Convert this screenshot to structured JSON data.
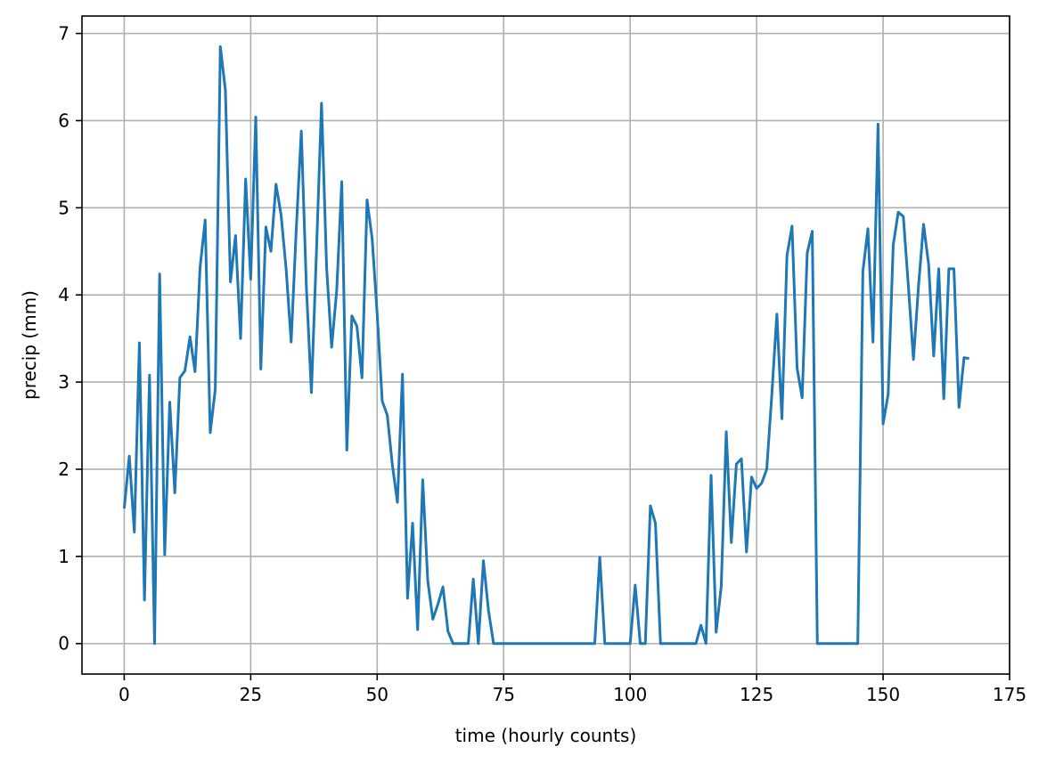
{
  "chart_data": {
    "type": "line",
    "title": "",
    "xlabel": "time (hourly counts)",
    "ylabel": "precip (mm)",
    "xlim": [
      -8.35,
      175
    ],
    "ylim": [
      -0.35,
      7.2
    ],
    "xticks": [
      0,
      25,
      50,
      75,
      100,
      125,
      150,
      175
    ],
    "yticks": [
      0,
      1,
      2,
      3,
      4,
      5,
      6,
      7
    ],
    "grid": true,
    "legend": "none",
    "series": [
      {
        "color": "#1f77b4",
        "x": [
          0,
          1,
          2,
          3,
          4,
          5,
          6,
          7,
          8,
          9,
          10,
          11,
          12,
          13,
          14,
          15,
          16,
          17,
          18,
          19,
          20,
          21,
          22,
          23,
          24,
          25,
          26,
          27,
          28,
          29,
          30,
          31,
          32,
          33,
          34,
          35,
          36,
          37,
          38,
          39,
          40,
          41,
          42,
          43,
          44,
          45,
          46,
          47,
          48,
          49,
          50,
          51,
          52,
          53,
          54,
          55,
          56,
          57,
          58,
          59,
          60,
          61,
          62,
          63,
          64,
          65,
          66,
          67,
          68,
          69,
          70,
          71,
          72,
          73,
          74,
          75,
          76,
          77,
          78,
          79,
          80,
          81,
          82,
          83,
          84,
          85,
          86,
          87,
          88,
          89,
          90,
          91,
          92,
          93,
          94,
          95,
          96,
          97,
          98,
          99,
          100,
          101,
          102,
          103,
          104,
          105,
          106,
          107,
          108,
          109,
          110,
          111,
          112,
          113,
          114,
          115,
          116,
          117,
          118,
          119,
          120,
          121,
          122,
          123,
          124,
          125,
          126,
          127,
          128,
          129,
          130,
          131,
          132,
          133,
          134,
          135,
          136,
          137,
          138,
          139,
          140,
          141,
          142,
          143,
          144,
          145,
          146,
          147,
          148,
          149,
          150,
          151,
          152,
          153,
          154,
          155,
          156,
          157,
          158,
          159,
          160,
          161,
          162,
          163,
          164,
          165,
          166,
          167
        ],
        "y": [
          1.55,
          2.15,
          1.28,
          3.45,
          0.5,
          3.08,
          0.0,
          4.24,
          1.02,
          2.77,
          1.73,
          3.05,
          3.13,
          3.52,
          3.12,
          4.32,
          4.86,
          2.42,
          2.92,
          6.85,
          6.35,
          4.15,
          4.68,
          3.5,
          5.33,
          4.18,
          6.04,
          3.15,
          4.78,
          4.5,
          5.27,
          4.92,
          4.3,
          3.46,
          4.75,
          5.88,
          4.1,
          2.88,
          4.5,
          6.2,
          4.32,
          3.4,
          4.05,
          5.3,
          2.22,
          3.76,
          3.64,
          3.05,
          5.09,
          4.65,
          3.78,
          2.78,
          2.62,
          2.05,
          1.62,
          3.09,
          0.52,
          1.38,
          0.16,
          1.88,
          0.72,
          0.28,
          0.45,
          0.65,
          0.14,
          0.0,
          0.0,
          0.0,
          0.0,
          0.74,
          0.0,
          0.95,
          0.38,
          0.0,
          0.0,
          0.0,
          0.0,
          0.0,
          0.0,
          0.0,
          0.0,
          0.0,
          0.0,
          0.0,
          0.0,
          0.0,
          0.0,
          0.0,
          0.0,
          0.0,
          0.0,
          0.0,
          0.0,
          0.0,
          0.99,
          0.0,
          0.0,
          0.0,
          0.0,
          0.0,
          0.0,
          0.67,
          0.0,
          0.0,
          1.58,
          1.38,
          0.0,
          0.0,
          0.0,
          0.0,
          0.0,
          0.0,
          0.0,
          0.0,
          0.21,
          0.0,
          1.93,
          0.13,
          0.65,
          2.43,
          1.16,
          2.06,
          2.12,
          1.05,
          1.91,
          1.78,
          1.84,
          2.0,
          2.85,
          3.78,
          2.58,
          4.45,
          4.79,
          3.16,
          2.82,
          4.48,
          4.73,
          0.0,
          0.0,
          0.0,
          0.0,
          0.0,
          0.0,
          0.0,
          0.0,
          0.0,
          4.27,
          4.76,
          3.46,
          5.96,
          2.52,
          2.86,
          4.57,
          4.95,
          4.9,
          4.1,
          3.26,
          4.1,
          4.81,
          4.35,
          3.3,
          4.3,
          2.81,
          4.3,
          4.3,
          2.71,
          3.28,
          3.27
        ]
      }
    ]
  }
}
